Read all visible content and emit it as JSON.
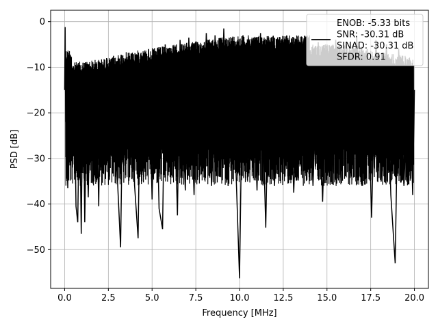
{
  "chart_data": {
    "type": "line",
    "xlabel": "Frequency [MHz]",
    "ylabel": "PSD [dB]",
    "xlim": [
      -0.8,
      20.8
    ],
    "ylim": [
      -58.5,
      2.5
    ],
    "xticks": [
      0.0,
      2.5,
      5.0,
      7.5,
      10.0,
      12.5,
      15.0,
      17.5,
      20.0
    ],
    "xtick_labels": [
      "0.0",
      "2.5",
      "5.0",
      "7.5",
      "10.0",
      "12.5",
      "15.0",
      "17.5",
      "20.0"
    ],
    "yticks": [
      0,
      -10,
      -20,
      -30,
      -40,
      -50
    ],
    "ytick_labels": [
      "0",
      "−10",
      "−20",
      "−30",
      "−40",
      "−50"
    ],
    "grid": true,
    "legend_placement": "top-right",
    "legend_lines": [
      "ENOB: -5.33 bits",
      "SNR: -30.31 dB",
      "SINAD: -30.31 dB",
      "SFDR: 0.91"
    ],
    "series_color": "#000000",
    "series": [
      {
        "points": [
          [
            0.0,
            -15
          ],
          [
            0.03,
            -1.2
          ],
          [
            0.06,
            -22
          ],
          [
            0.09,
            -8
          ],
          [
            0.12,
            -27
          ],
          [
            0.18,
            -36.5
          ],
          [
            0.25,
            -10
          ],
          [
            0.35,
            -18
          ],
          [
            0.45,
            -32
          ],
          [
            0.55,
            -12
          ],
          [
            0.65,
            -40.5
          ],
          [
            0.75,
            -44
          ],
          [
            0.85,
            -15
          ],
          [
            0.95,
            -46.5
          ],
          [
            1.05,
            -9
          ],
          [
            1.15,
            -44
          ],
          [
            1.25,
            -20
          ],
          [
            1.35,
            -38.5
          ],
          [
            1.5,
            -10
          ],
          [
            1.65,
            -32
          ],
          [
            1.8,
            -12
          ],
          [
            1.95,
            -40.5
          ],
          [
            2.05,
            -9
          ],
          [
            2.2,
            -30
          ],
          [
            2.4,
            -8
          ],
          [
            2.6,
            -24
          ],
          [
            2.8,
            -7.5
          ],
          [
            3.0,
            -33
          ],
          [
            3.2,
            -49.5
          ],
          [
            3.35,
            -8
          ],
          [
            3.6,
            -28
          ],
          [
            3.8,
            -7
          ],
          [
            4.0,
            -36
          ],
          [
            4.2,
            -47.5
          ],
          [
            4.35,
            -7
          ],
          [
            4.6,
            -33
          ],
          [
            4.8,
            -6
          ],
          [
            5.0,
            -39
          ],
          [
            5.2,
            -6.5
          ],
          [
            5.4,
            -41
          ],
          [
            5.6,
            -45.5
          ],
          [
            5.75,
            -5
          ],
          [
            6.0,
            -32
          ],
          [
            6.2,
            -6
          ],
          [
            6.45,
            -42.5
          ],
          [
            6.6,
            -4
          ],
          [
            6.9,
            -37
          ],
          [
            7.1,
            -3.5
          ],
          [
            7.4,
            -38
          ],
          [
            7.6,
            -4.5
          ],
          [
            7.9,
            -30
          ],
          [
            8.1,
            -2.5
          ],
          [
            8.4,
            -36
          ],
          [
            8.6,
            -3
          ],
          [
            8.9,
            -34
          ],
          [
            9.1,
            -1.5
          ],
          [
            9.35,
            -36
          ],
          [
            9.6,
            -4
          ],
          [
            9.8,
            -33
          ],
          [
            10.0,
            -56.3
          ],
          [
            10.2,
            -3
          ],
          [
            10.5,
            -34
          ],
          [
            10.7,
            -4
          ],
          [
            11.0,
            -37
          ],
          [
            11.2,
            -2.5
          ],
          [
            11.5,
            -45.2
          ],
          [
            11.7,
            -4
          ],
          [
            12.0,
            -36
          ],
          [
            12.3,
            -3.5
          ],
          [
            12.6,
            -34
          ],
          [
            12.8,
            -4
          ],
          [
            13.1,
            -37.5
          ],
          [
            13.4,
            -5
          ],
          [
            13.7,
            -32
          ],
          [
            13.9,
            -4
          ],
          [
            14.2,
            -36
          ],
          [
            14.5,
            -4.5
          ],
          [
            14.75,
            -39.5
          ],
          [
            15.0,
            -5
          ],
          [
            15.3,
            -33
          ],
          [
            15.5,
            -4
          ],
          [
            15.8,
            -35
          ],
          [
            16.1,
            -5
          ],
          [
            16.4,
            -34
          ],
          [
            16.7,
            -3
          ],
          [
            17.0,
            -36
          ],
          [
            17.3,
            -6
          ],
          [
            17.55,
            -43
          ],
          [
            17.8,
            -4
          ],
          [
            18.1,
            -35
          ],
          [
            18.4,
            -5
          ],
          [
            18.65,
            -38
          ],
          [
            18.9,
            -53
          ],
          [
            19.1,
            -6
          ],
          [
            19.4,
            -36
          ],
          [
            19.7,
            -8
          ],
          [
            19.9,
            -38
          ],
          [
            20.0,
            -15
          ]
        ]
      }
    ]
  }
}
